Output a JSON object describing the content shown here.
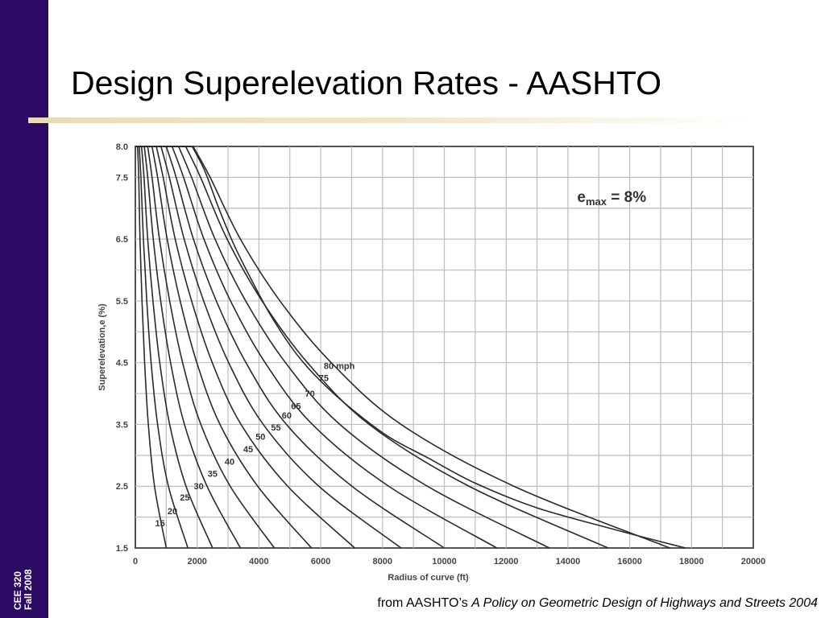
{
  "slide": {
    "title": "Design Superelevation Rates - AASHTO",
    "sidebar_lines": [
      "CEE 320",
      "Fall 2008"
    ],
    "source_prefix": "from AASHTO’s ",
    "source_title": "A Policy on Geometric Design of Highways and Streets 2004"
  },
  "colors": {
    "sidebar": "#2b0a63",
    "underline": "#e9dcb4",
    "curves": "#2a2a2a",
    "grid": "#bdbdbd"
  },
  "chart_data": {
    "type": "line",
    "title": "",
    "annotation": {
      "e": "e",
      "sub": "max",
      "rest": " = 8%"
    },
    "xlabel": "Radius of curve (ft)",
    "ylabel": "Superelevation,e (%)",
    "xlim": [
      0,
      20000
    ],
    "ylim": [
      1.5,
      8.0
    ],
    "x_ticks": [
      "0",
      "2000",
      "4000",
      "6000",
      "8000",
      "10000",
      "12000",
      "14000",
      "16000",
      "18000",
      "20000"
    ],
    "y_ticks": [
      {
        "value": 8.0,
        "label": "8.0"
      },
      {
        "value": 7.5,
        "label": "7.5"
      },
      {
        "value": 6.5,
        "label": "6.5"
      },
      {
        "value": 5.5,
        "label": "5.5"
      },
      {
        "value": 4.5,
        "label": "4.5"
      },
      {
        "value": 3.5,
        "label": "3.5"
      },
      {
        "value": 2.5,
        "label": "2.5"
      },
      {
        "value": 1.5,
        "label": "1.5"
      }
    ],
    "series": [
      {
        "name": "15",
        "label": "15",
        "label_at": [
          800,
          1.85
        ],
        "points": [
          [
            70,
            8.0
          ],
          [
            110,
            7.5
          ],
          [
            150,
            6.5
          ],
          [
            215,
            5.5
          ],
          [
            300,
            4.5
          ],
          [
            420,
            3.5
          ],
          [
            620,
            2.5
          ],
          [
            1000,
            1.5
          ]
        ]
      },
      {
        "name": "20",
        "label": "20",
        "label_at": [
          1200,
          2.05
        ],
        "points": [
          [
            125,
            8.0
          ],
          [
            180,
            7.5
          ],
          [
            260,
            6.5
          ],
          [
            370,
            5.5
          ],
          [
            510,
            4.5
          ],
          [
            720,
            3.5
          ],
          [
            1070,
            2.5
          ],
          [
            1700,
            1.5
          ]
        ]
      },
      {
        "name": "25",
        "label": "25",
        "label_at": [
          1600,
          2.27
        ],
        "points": [
          [
            200,
            8.0
          ],
          [
            280,
            7.5
          ],
          [
            400,
            6.5
          ],
          [
            570,
            5.5
          ],
          [
            790,
            4.5
          ],
          [
            1110,
            3.5
          ],
          [
            1640,
            2.5
          ],
          [
            2500,
            1.5
          ]
        ]
      },
      {
        "name": "30",
        "label": "30",
        "label_at": [
          2050,
          2.45
        ],
        "points": [
          [
            290,
            8.0
          ],
          [
            400,
            7.5
          ],
          [
            580,
            6.5
          ],
          [
            820,
            5.5
          ],
          [
            1140,
            4.5
          ],
          [
            1590,
            3.5
          ],
          [
            2320,
            2.5
          ],
          [
            3400,
            1.5
          ]
        ]
      },
      {
        "name": "35",
        "label": "35",
        "label_at": [
          2500,
          2.65
        ],
        "points": [
          [
            400,
            8.0
          ],
          [
            540,
            7.5
          ],
          [
            780,
            6.5
          ],
          [
            1110,
            5.5
          ],
          [
            1530,
            4.5
          ],
          [
            2120,
            3.5
          ],
          [
            3070,
            2.5
          ],
          [
            4500,
            1.5
          ]
        ]
      },
      {
        "name": "40",
        "label": "40",
        "label_at": [
          3050,
          2.85
        ],
        "points": [
          [
            540,
            8.0
          ],
          [
            720,
            7.5
          ],
          [
            1030,
            6.5
          ],
          [
            1450,
            5.5
          ],
          [
            1990,
            4.5
          ],
          [
            2740,
            3.5
          ],
          [
            3960,
            2.5
          ],
          [
            5700,
            1.5
          ]
        ]
      },
      {
        "name": "45",
        "label": "45",
        "label_at": [
          3650,
          3.05
        ],
        "points": [
          [
            680,
            8.0
          ],
          [
            900,
            7.5
          ],
          [
            1290,
            6.5
          ],
          [
            1820,
            5.5
          ],
          [
            2490,
            4.5
          ],
          [
            3420,
            3.5
          ],
          [
            4930,
            2.5
          ],
          [
            7100,
            1.5
          ]
        ]
      },
      {
        "name": "50",
        "label": "50",
        "label_at": [
          4050,
          3.25
        ],
        "points": [
          [
            830,
            8.0
          ],
          [
            1100,
            7.5
          ],
          [
            1580,
            6.5
          ],
          [
            2210,
            5.5
          ],
          [
            3020,
            4.5
          ],
          [
            4140,
            3.5
          ],
          [
            5940,
            2.5
          ],
          [
            8600,
            1.5
          ]
        ]
      },
      {
        "name": "55",
        "label": "55",
        "label_at": [
          4550,
          3.4
        ],
        "points": [
          [
            1000,
            8.0
          ],
          [
            1320,
            7.5
          ],
          [
            1880,
            6.5
          ],
          [
            2620,
            5.5
          ],
          [
            3580,
            4.5
          ],
          [
            4890,
            3.5
          ],
          [
            7010,
            2.5
          ],
          [
            10000,
            1.5
          ]
        ]
      },
      {
        "name": "60",
        "label": "60",
        "label_at": [
          4900,
          3.6
        ],
        "points": [
          [
            1190,
            8.0
          ],
          [
            1560,
            7.5
          ],
          [
            2220,
            6.5
          ],
          [
            3080,
            5.5
          ],
          [
            4200,
            4.5
          ],
          [
            5730,
            3.5
          ],
          [
            8200,
            2.5
          ],
          [
            11700,
            1.5
          ]
        ]
      },
      {
        "name": "65",
        "label": "65",
        "label_at": [
          5200,
          3.75
        ],
        "points": [
          [
            1400,
            8.0
          ],
          [
            1820,
            7.5
          ],
          [
            2580,
            6.5
          ],
          [
            3570,
            5.5
          ],
          [
            4860,
            4.5
          ],
          [
            6620,
            3.5
          ],
          [
            9450,
            2.5
          ],
          [
            13400,
            1.5
          ]
        ]
      },
      {
        "name": "70",
        "label": "70",
        "label_at": [
          5650,
          3.95
        ],
        "points": [
          [
            1630,
            8.0
          ],
          [
            2110,
            7.5
          ],
          [
            2970,
            6.5
          ],
          [
            4100,
            5.5
          ],
          [
            5570,
            4.5
          ],
          [
            7570,
            3.5
          ],
          [
            10800,
            2.5
          ],
          [
            15300,
            1.5
          ]
        ]
      },
      {
        "name": "75",
        "label": "75",
        "label_at": [
          6100,
          4.2
        ],
        "points": [
          [
            1870,
            8.0
          ],
          [
            2420,
            7.5
          ],
          [
            3400,
            6.5
          ],
          [
            4680,
            5.5
          ],
          [
            6340,
            4.5
          ],
          [
            8600,
            3.5
          ],
          [
            12250,
            2.5
          ],
          [
            17300,
            1.5
          ]
        ]
      },
      {
        "name": "80 mph",
        "label": "80 mph",
        "label_at": [
          6600,
          4.4
        ],
        "points": [
          [
            1840,
            8.0
          ],
          [
            2250,
            7.6
          ],
          [
            2700,
            7.0
          ],
          [
            3200,
            6.4
          ],
          [
            3800,
            5.8
          ],
          [
            4400,
            5.25
          ],
          [
            5200,
            4.65
          ],
          [
            6000,
            4.2
          ],
          [
            7000,
            3.75
          ],
          [
            8200,
            3.3
          ],
          [
            9500,
            2.95
          ],
          [
            11000,
            2.55
          ],
          [
            13000,
            2.15
          ],
          [
            15500,
            1.8
          ],
          [
            17800,
            1.5
          ]
        ]
      }
    ]
  }
}
